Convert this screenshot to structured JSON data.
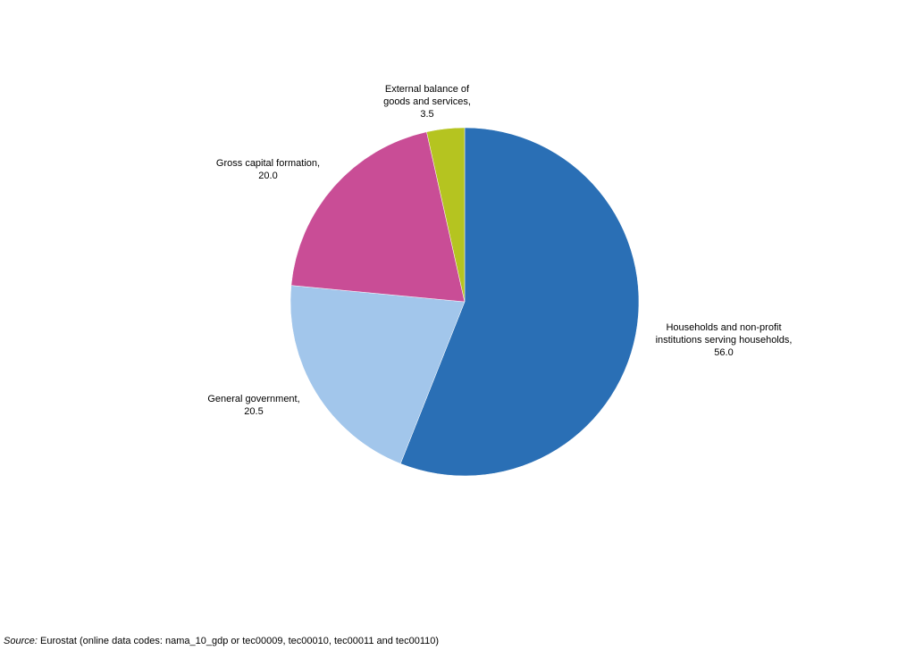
{
  "chart_data": {
    "type": "pie",
    "start_angle_deg": 0,
    "direction": "clockwise",
    "slices": [
      {
        "label_lines": [
          "Households and non-profit",
          "institutions serving households,",
          "56.0"
        ],
        "value": 56.0,
        "color": "#2a6fb5"
      },
      {
        "label_lines": [
          "General government,",
          "20.5"
        ],
        "value": 20.5,
        "color": "#a2c6eb"
      },
      {
        "label_lines": [
          "Gross capital formation,",
          "20.0"
        ],
        "value": 20.0,
        "color": "#c94d96"
      },
      {
        "label_lines": [
          "External balance of",
          "goods and services,",
          "3.5"
        ],
        "value": 3.5,
        "color": "#b5c420"
      }
    ]
  },
  "source": {
    "prefix": "Source:",
    "text": "Eurostat (online data codes: nama_10_gdp or tec00009, tec00010, tec00011 and tec00110)"
  }
}
